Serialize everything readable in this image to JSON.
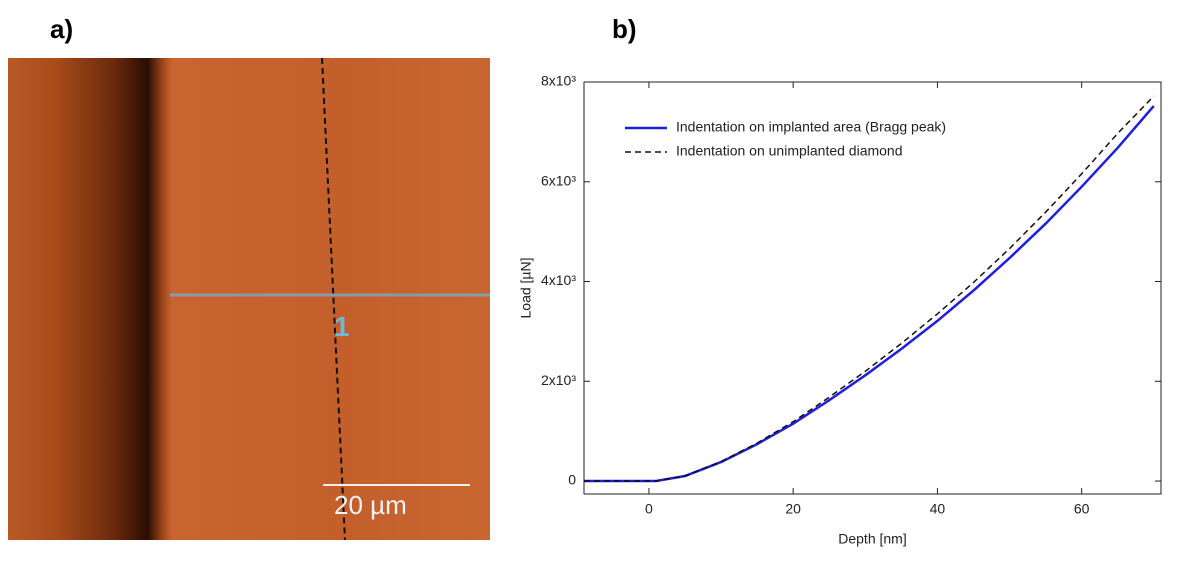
{
  "panel_labels": [
    "a)",
    "b)"
  ],
  "afm_image": {
    "marker_label": "1",
    "scale_bar": "20 µm"
  },
  "chart_data": {
    "type": "line",
    "xlabel": "Depth [nm]",
    "ylabel": "Load [µN]",
    "x": [
      -9,
      -5,
      0,
      1,
      5,
      10,
      15,
      20,
      25,
      30,
      35,
      40,
      45,
      50,
      55,
      60,
      65,
      70
    ],
    "series": [
      {
        "name": "Indentation on implanted area (Bragg peak)",
        "color": "#1f1fe0",
        "style": "solid",
        "values": [
          0,
          0,
          0,
          0,
          100,
          380,
          740,
          1150,
          1620,
          2120,
          2650,
          3210,
          3820,
          4470,
          5160,
          5900,
          6680,
          7520
        ]
      },
      {
        "name": "Indentation on unimplanted diamond",
        "color": "#111111",
        "style": "dashed",
        "values": [
          0,
          0,
          0,
          0,
          100,
          390,
          760,
          1190,
          1680,
          2200,
          2760,
          3350,
          3980,
          4660,
          5390,
          6160,
          6970,
          7720
        ]
      }
    ],
    "xlim": [
      -9,
      71
    ],
    "ylim": [
      -260,
      8000
    ],
    "xticks": [
      0,
      20,
      40,
      60
    ],
    "yticks": [
      0,
      {
        "value": 2000,
        "label": "2x10³"
      },
      {
        "value": 4000,
        "label": "4x10³"
      },
      {
        "value": 6000,
        "label": "6x10³"
      },
      {
        "value": 8000,
        "label": "8x10³"
      }
    ],
    "legend": "upper left"
  }
}
